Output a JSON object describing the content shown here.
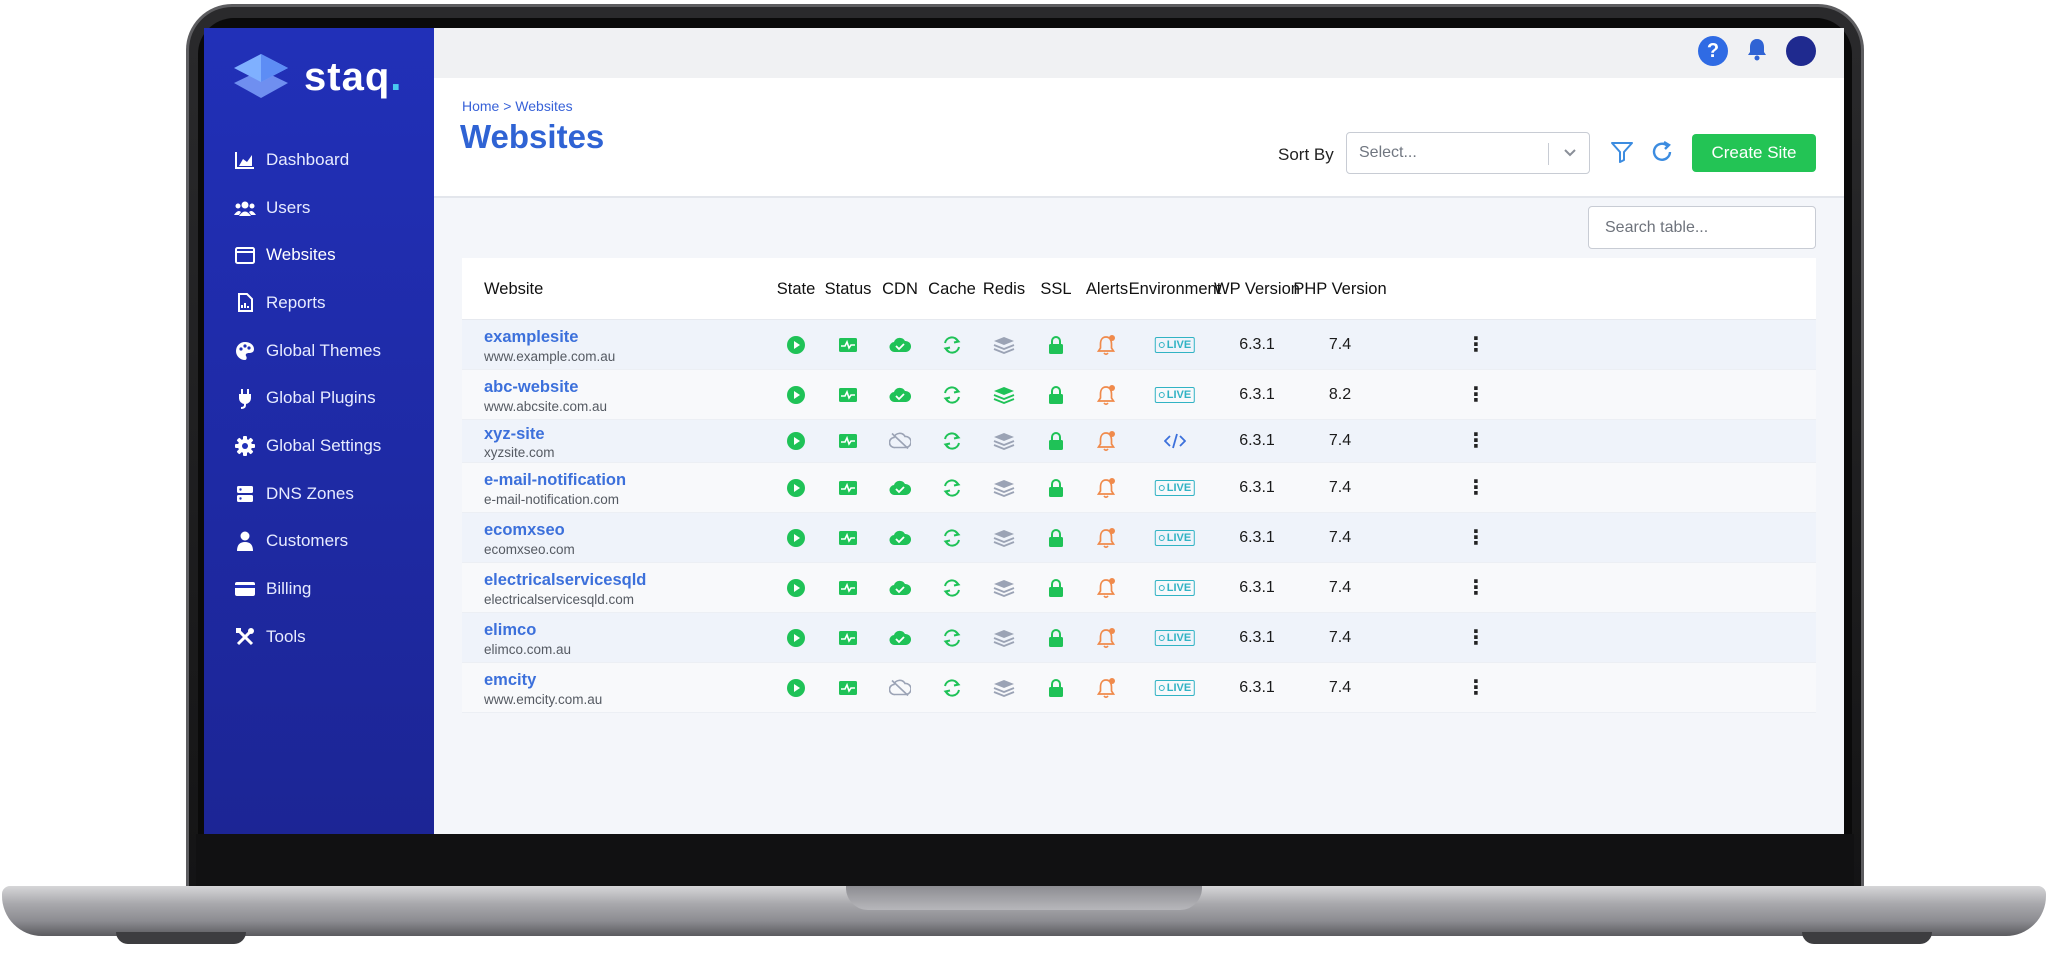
{
  "app": {
    "brand": "staq",
    "brand_dot": "."
  },
  "sidebar": {
    "items": [
      {
        "label": "Dashboard",
        "icon": "chart-area-icon"
      },
      {
        "label": "Users",
        "icon": "users-icon"
      },
      {
        "label": "Websites",
        "icon": "browser-window-icon",
        "active": true
      },
      {
        "label": "Reports",
        "icon": "report-file-icon"
      },
      {
        "label": "Global Themes",
        "icon": "palette-icon"
      },
      {
        "label": "Global Plugins",
        "icon": "plug-icon"
      },
      {
        "label": "Global Settings",
        "icon": "gear-icon"
      },
      {
        "label": "DNS Zones",
        "icon": "server-icon"
      },
      {
        "label": "Customers",
        "icon": "person-icon"
      },
      {
        "label": "Billing",
        "icon": "credit-card-icon"
      },
      {
        "label": "Tools",
        "icon": "tools-icon"
      }
    ]
  },
  "header": {
    "breadcrumb": "Home > Websites",
    "title": "Websites",
    "sort_label": "Sort By",
    "sort_placeholder": "Select...",
    "create_label": "Create Site"
  },
  "search": {
    "placeholder": "Search table..."
  },
  "table": {
    "columns": [
      "Website",
      "State",
      "Status",
      "CDN",
      "Cache",
      "Redis",
      "SSL",
      "Alerts",
      "Environment",
      "WP Version",
      "PHP Version"
    ],
    "rows": [
      {
        "name": "examplesite",
        "url": "www.example.com.au",
        "cdn": "on",
        "redis": "grey",
        "env": "LIVE",
        "wp": "6.3.1",
        "php": "7.4"
      },
      {
        "name": "abc-website",
        "url": "www.abcsite.com.au",
        "cdn": "on",
        "redis": "green",
        "env": "LIVE",
        "wp": "6.3.1",
        "php": "8.2"
      },
      {
        "name": "xyz-site",
        "url": "xyzsite.com",
        "cdn": "off",
        "redis": "grey",
        "env": "code",
        "wp": "6.3.1",
        "php": "7.4"
      },
      {
        "name": "e-mail-notification",
        "url": "e-mail-notification.com",
        "cdn": "on",
        "redis": "grey",
        "env": "LIVE",
        "wp": "6.3.1",
        "php": "7.4"
      },
      {
        "name": "ecomxseo",
        "url": "ecomxseo.com",
        "cdn": "on",
        "redis": "grey",
        "env": "LIVE",
        "wp": "6.3.1",
        "php": "7.4"
      },
      {
        "name": "electricalservicesqld",
        "url": "electricalservicesqld.com",
        "cdn": "on",
        "redis": "grey",
        "env": "LIVE",
        "wp": "6.3.1",
        "php": "7.4"
      },
      {
        "name": "elimco",
        "url": "elimco.com.au",
        "cdn": "on",
        "redis": "grey",
        "env": "LIVE",
        "wp": "6.3.1",
        "php": "7.4"
      },
      {
        "name": "emcity",
        "url": "www.emcity.com.au",
        "cdn": "off",
        "redis": "grey",
        "env": "LIVE",
        "wp": "6.3.1",
        "php": "7.4"
      }
    ]
  },
  "colors": {
    "sidebar": "#2130b8",
    "accent_blue": "#2f63d4",
    "success_green": "#1fc257",
    "alert_orange": "#f08a4b",
    "env_teal": "#31b3c4"
  }
}
